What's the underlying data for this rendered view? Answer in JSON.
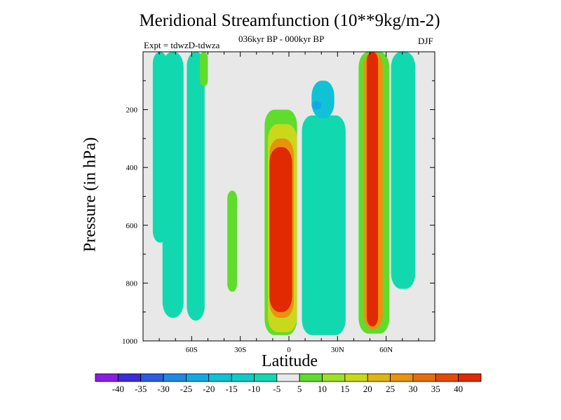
{
  "figure": {
    "title": "Meridional Streamfunction (10**9kg/m-2)",
    "subtitle": "036kyr BP - 000kyr BP",
    "expt_label": "Expt = tdwzD-tdwza",
    "season": "DJF"
  },
  "chart_data": {
    "type": "heatmap",
    "xlabel": "Latitude",
    "ylabel": "Pressure (in hPa)",
    "xlim": [
      -90,
      90
    ],
    "ylim": [
      1000,
      0
    ],
    "y_reversed": true,
    "x_ticks": [
      {
        "value": -60,
        "label": "60S"
      },
      {
        "value": -30,
        "label": "30S"
      },
      {
        "value": 0,
        "label": "0"
      },
      {
        "value": 30,
        "label": "30N"
      },
      {
        "value": 60,
        "label": "60N"
      }
    ],
    "y_ticks": [
      {
        "value": 200,
        "label": "200"
      },
      {
        "value": 400,
        "label": "400"
      },
      {
        "value": 600,
        "label": "600"
      },
      {
        "value": 800,
        "label": "800"
      },
      {
        "value": 1000,
        "label": "1000"
      }
    ],
    "background_color": "#e8e8e8",
    "levels": [
      -40,
      -35,
      -30,
      -25,
      -20,
      -15,
      -10,
      -5,
      5,
      10,
      15,
      20,
      25,
      30,
      35,
      40
    ],
    "colors": [
      "#8b1ce6",
      "#3a2cd6",
      "#2a5ce0",
      "#1f88e8",
      "#12a8e6",
      "#0fc2d6",
      "#10ccc8",
      "#12d8b0",
      "#e8e8e8",
      "#5fdc2c",
      "#9ee024",
      "#cad81c",
      "#e0b414",
      "#e8920e",
      "#e86c0a",
      "#e64806",
      "#e02a02"
    ],
    "regions": [
      {
        "lat_range": [
          -84,
          -75
        ],
        "p_range": [
          0,
          660
        ],
        "value": -10
      },
      {
        "lat_range": [
          -78,
          -65
        ],
        "p_range": [
          0,
          920
        ],
        "value": -10
      },
      {
        "lat_range": [
          -63,
          -52
        ],
        "p_range": [
          0,
          930
        ],
        "value": -10
      },
      {
        "lat_range": [
          -55,
          -50
        ],
        "p_range": [
          0,
          120
        ],
        "value": 5
      },
      {
        "lat_range": [
          -38,
          -32
        ],
        "p_range": [
          480,
          830
        ],
        "value": 5
      },
      {
        "lat_range": [
          -15,
          5
        ],
        "p_range": [
          200,
          980
        ],
        "value": 5
      },
      {
        "lat_range": [
          -13,
          5
        ],
        "p_range": [
          250,
          970
        ],
        "value": 15
      },
      {
        "lat_range": [
          -12,
          3
        ],
        "p_range": [
          300,
          920
        ],
        "value": 25
      },
      {
        "lat_range": [
          -12,
          2
        ],
        "p_range": [
          330,
          900
        ],
        "value": 40
      },
      {
        "lat_range": [
          8,
          35
        ],
        "p_range": [
          220,
          980
        ],
        "value": -10
      },
      {
        "lat_range": [
          14,
          28
        ],
        "p_range": [
          100,
          230
        ],
        "value": -20
      },
      {
        "lat_range": [
          14,
          20
        ],
        "p_range": [
          170,
          200
        ],
        "value": -25
      },
      {
        "lat_range": [
          43,
          62
        ],
        "p_range": [
          0,
          975
        ],
        "value": 5
      },
      {
        "lat_range": [
          46,
          58
        ],
        "p_range": [
          0,
          960
        ],
        "value": 25
      },
      {
        "lat_range": [
          48,
          55
        ],
        "p_range": [
          0,
          950
        ],
        "value": 40
      },
      {
        "lat_range": [
          63,
          78
        ],
        "p_range": [
          0,
          820
        ],
        "value": -10
      }
    ]
  }
}
